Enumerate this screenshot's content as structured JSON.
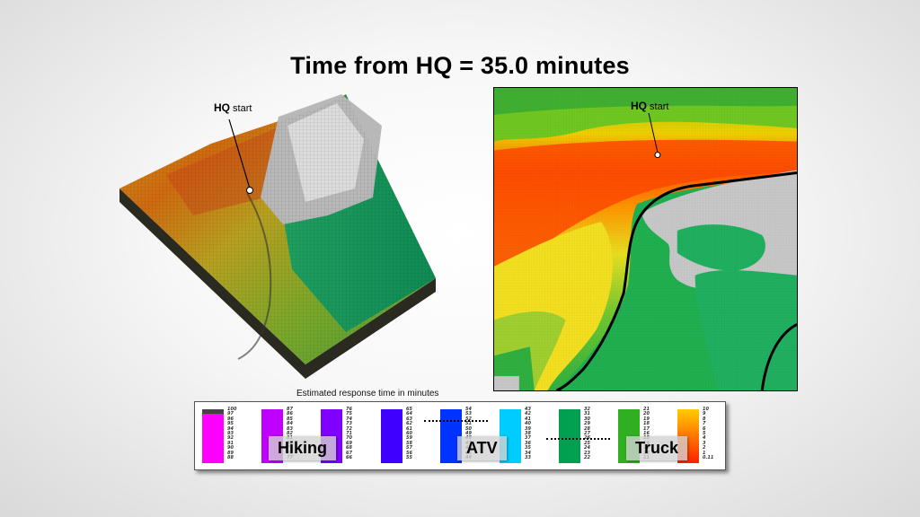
{
  "title": "Time from HQ = 35.0 minutes",
  "hq_callout": {
    "bold": "HQ",
    "rest": " start"
  },
  "legend": {
    "caption": "Estimated response time in minutes",
    "modes": [
      "Hiking",
      "ATV",
      "Truck"
    ],
    "columns": [
      {
        "color": "#ff00ff",
        "top": "#444444",
        "nums": [
          "100",
          "97",
          "96",
          "95",
          "94",
          "93",
          "92",
          "91",
          "90",
          "89",
          "88"
        ]
      },
      {
        "color": "#c000ff",
        "nums": [
          "87",
          "86",
          "85",
          "84",
          "83",
          "82",
          "81",
          "80",
          "79",
          "78",
          "77"
        ]
      },
      {
        "color": "#8000ff",
        "nums": [
          "76",
          "75",
          "74",
          "73",
          "72",
          "71",
          "70",
          "69",
          "68",
          "67",
          "66"
        ]
      },
      {
        "color": "#4000ff",
        "nums": [
          "65",
          "64",
          "63",
          "62",
          "61",
          "60",
          "59",
          "58",
          "57",
          "56",
          "55"
        ]
      },
      {
        "color": "#0033ff",
        "nums": [
          "54",
          "53",
          "52",
          "51",
          "50",
          "49",
          "48",
          "47",
          "46",
          "45",
          "44"
        ]
      },
      {
        "color": "#00ccff",
        "nums": [
          "43",
          "42",
          "41",
          "40",
          "39",
          "38",
          "37",
          "36",
          "35",
          "34",
          "33"
        ]
      },
      {
        "color": "#00a050",
        "nums": [
          "32",
          "31",
          "30",
          "29",
          "28",
          "27",
          "26",
          "25",
          "24",
          "23",
          "22"
        ]
      },
      {
        "color": "#30b020",
        "nums": [
          "21",
          "20",
          "19",
          "18",
          "17",
          "16",
          "15",
          "14",
          "13",
          "12",
          "11"
        ]
      },
      {
        "color": "#ffcc00",
        "bottom": "#ff2000",
        "nums": [
          "10",
          "9",
          "8",
          "7",
          "6",
          "5",
          "4",
          "3",
          "2",
          "1",
          "0.11"
        ]
      }
    ]
  }
}
